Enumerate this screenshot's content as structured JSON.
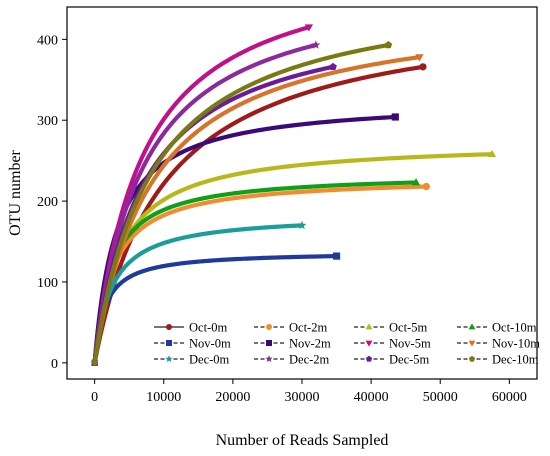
{
  "chart_data": {
    "type": "line",
    "xlabel": "Number of Reads Sampled",
    "ylabel": "OTU number",
    "xlim": [
      -4000,
      64000
    ],
    "ylim": [
      -20,
      440
    ],
    "xticks": [
      0,
      10000,
      20000,
      30000,
      40000,
      50000,
      60000
    ],
    "xtick_labels": [
      "0",
      "10000",
      "20000",
      "30000",
      "40000",
      "50000",
      "60000"
    ],
    "yticks": [
      0,
      100,
      200,
      300,
      400
    ],
    "ytick_labels": [
      "0",
      "100",
      "200",
      "300",
      "400"
    ],
    "grid": false,
    "legend_position": "bottom-right",
    "series": [
      {
        "name": "Oct-0m",
        "color": "#a01a1a",
        "marker": "circle",
        "x_end": 47500,
        "y_end": 366,
        "k": 10000
      },
      {
        "name": "Oct-2m",
        "color": "#f28c2e",
        "marker": "circle",
        "x_end": 48000,
        "y_end": 218,
        "k": 2600
      },
      {
        "name": "Oct-5m",
        "color": "#b8b81c",
        "marker": "triangle-up",
        "x_end": 57500,
        "y_end": 258,
        "k": 3600
      },
      {
        "name": "Oct-10m",
        "color": "#10a018",
        "marker": "triangle-up",
        "x_end": 46500,
        "y_end": 223,
        "k": 2400
      },
      {
        "name": "Nov-0m",
        "color": "#1f3a9a",
        "marker": "square",
        "x_end": 35000,
        "y_end": 132,
        "k": 1500
      },
      {
        "name": "Nov-2m",
        "color": "#3c0a78",
        "marker": "square",
        "x_end": 43500,
        "y_end": 304,
        "k": 3200
      },
      {
        "name": "Nov-5m",
        "color": "#c0108a",
        "marker": "triangle-down",
        "x_end": 31000,
        "y_end": 415,
        "k": 6800
      },
      {
        "name": "Nov-10m",
        "color": "#d8742a",
        "marker": "triangle-down",
        "x_end": 47000,
        "y_end": 378,
        "k": 8200
      },
      {
        "name": "Dec-0m",
        "color": "#1a9e9a",
        "marker": "star",
        "x_end": 30000,
        "y_end": 170,
        "k": 2400
      },
      {
        "name": "Dec-2m",
        "color": "#8c2a9c",
        "marker": "star",
        "x_end": 32000,
        "y_end": 393,
        "k": 6800
      },
      {
        "name": "Dec-5m",
        "color": "#6a1a9a",
        "marker": "pentagon",
        "x_end": 34500,
        "y_end": 366,
        "k": 7000
      },
      {
        "name": "Dec-10m",
        "color": "#7a7a12",
        "marker": "pentagon",
        "x_end": 42500,
        "y_end": 393,
        "k": 8200
      }
    ]
  }
}
